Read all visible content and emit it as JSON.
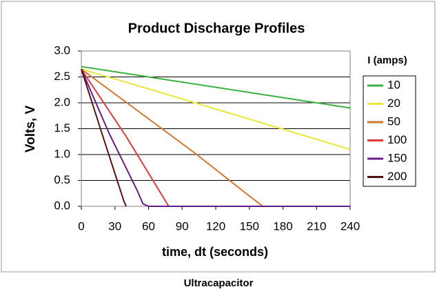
{
  "chart_data": {
    "type": "line",
    "title": "Product Discharge Profiles",
    "xlabel": "time, dt (seconds)",
    "ylabel": "Volts, V",
    "caption": "Ultracapacitor",
    "legend_title": "I (amps)",
    "legend": "right",
    "grid": true,
    "xlim": [
      0,
      240
    ],
    "xticks": [
      0,
      30,
      60,
      90,
      120,
      150,
      180,
      210,
      240
    ],
    "ylim": [
      0,
      3
    ],
    "yticks": [
      {
        "value": 0,
        "label": "0.0"
      },
      0.5,
      {
        "value": 1,
        "label": "1.0"
      },
      1.5,
      {
        "value": 2,
        "label": "2.0"
      },
      2.5,
      {
        "value": 3,
        "label": "3.0"
      }
    ],
    "series": [
      {
        "name": "10",
        "color": "#3cb040",
        "x": [
          0,
          60,
          120,
          180,
          240
        ],
        "values": [
          2.7,
          2.5,
          2.3,
          2.1,
          1.9
        ]
      },
      {
        "name": "20",
        "color": "#e8e83c",
        "x": [
          0,
          60,
          120,
          180,
          240
        ],
        "values": [
          2.65,
          2.27,
          1.88,
          1.49,
          1.1
        ]
      },
      {
        "name": "50",
        "color": "#d2762a",
        "x": [
          0,
          50,
          100,
          150,
          162,
          240
        ],
        "values": [
          2.65,
          1.85,
          1.05,
          0.2,
          0,
          0
        ]
      },
      {
        "name": "100",
        "color": "#e03a3a",
        "x": [
          0,
          40,
          78,
          240
        ],
        "values": [
          2.65,
          1.35,
          0,
          0
        ]
      },
      {
        "name": "150",
        "color": "#6a1a8a",
        "x": [
          0,
          25,
          50,
          55,
          60,
          240
        ],
        "values": [
          2.65,
          1.4,
          0.3,
          0.05,
          0,
          0
        ]
      },
      {
        "name": "200",
        "color": "#5a0f0f",
        "x": [
          0,
          20,
          38,
          40
        ],
        "values": [
          2.65,
          1.3,
          0.1,
          0
        ]
      }
    ]
  }
}
